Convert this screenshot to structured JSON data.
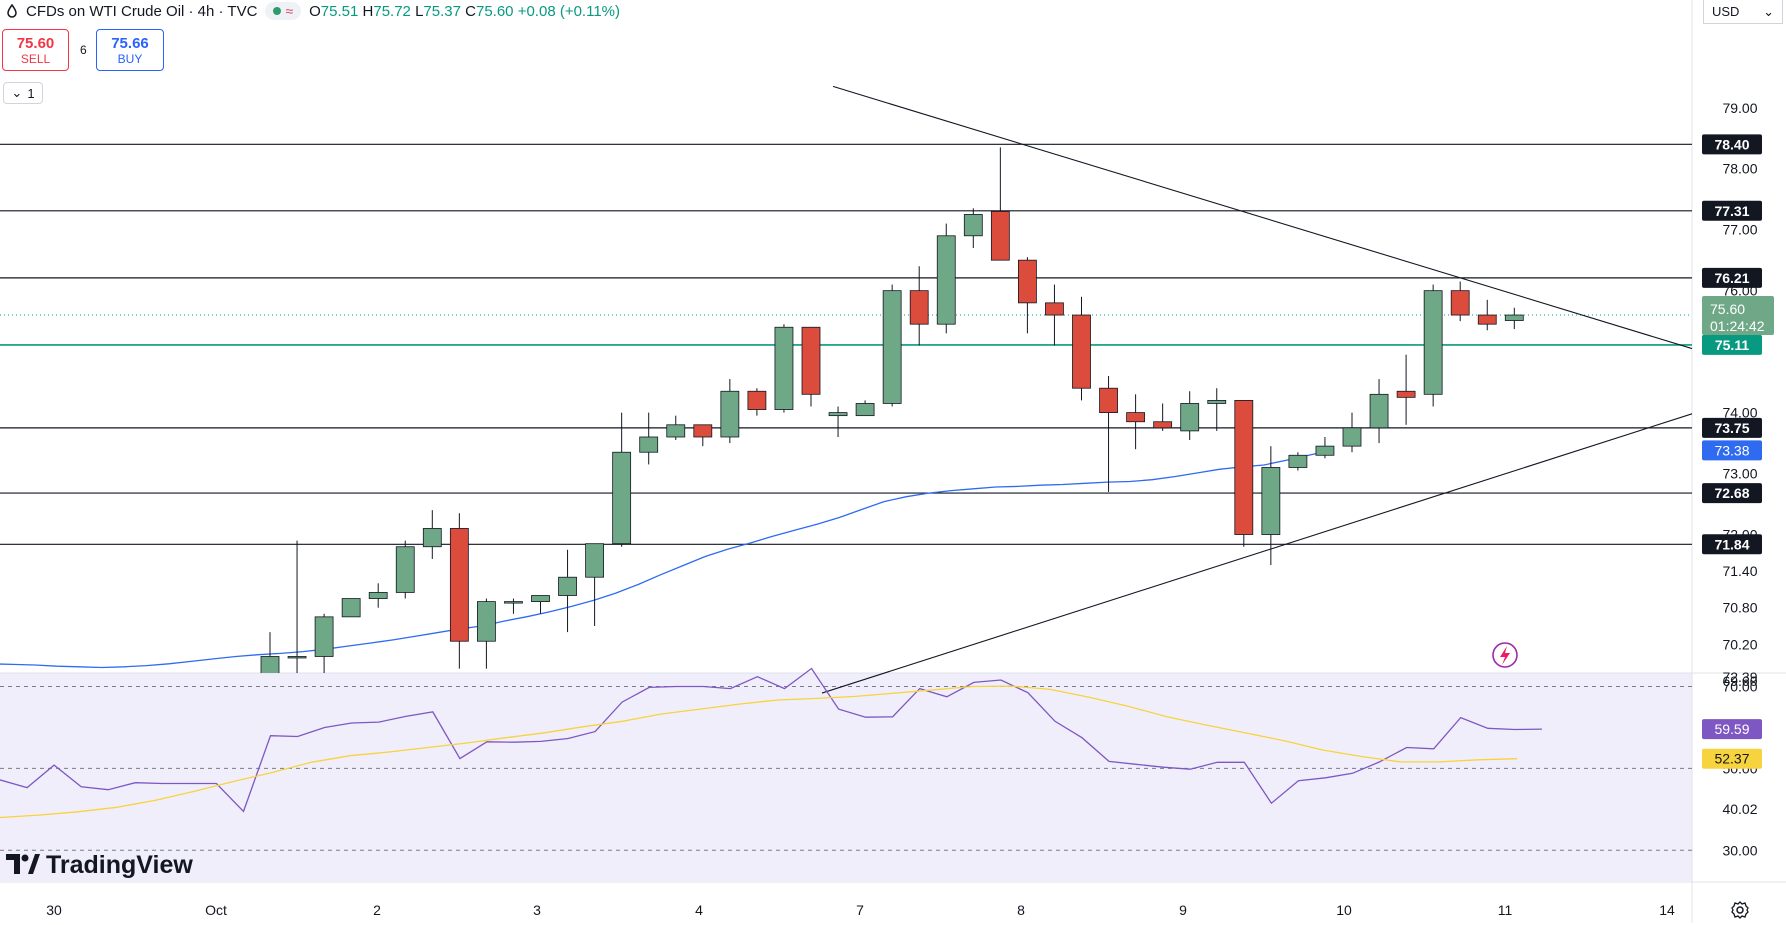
{
  "header": {
    "title": "CFDs on WTI Crude Oil · 4h · TVC",
    "ohlc": {
      "o_label": "O",
      "o": "75.51",
      "h_label": "H",
      "h": "75.72",
      "l_label": "L",
      "l": "75.37",
      "c_label": "C",
      "c": "75.60",
      "change": "+0.08 (+0.11%)"
    }
  },
  "trade": {
    "sell_price": "75.60",
    "sell_label": "SELL",
    "spread": "6",
    "buy_price": "75.66",
    "buy_label": "BUY"
  },
  "collapse_label": "1",
  "currency": "USD",
  "logo_text": "TradingView",
  "countdown": "01:24:42",
  "colors": {
    "up": "#6fa886",
    "down": "#db4c3c",
    "ma": "#2f6bf0",
    "rsi": "#7e57c2",
    "rsi_ma": "#f7d33d",
    "teal": "#089981"
  },
  "chart_data": [
    {
      "type": "candlestick",
      "title": "CFDs on WTI Crude Oil · 4h · TVC",
      "price_axis_ticks": [
        "79.00",
        "78.00",
        "77.00",
        "76.00",
        "74.00",
        "73.00",
        "72.00",
        "71.40",
        "70.80",
        "70.20",
        "69.60"
      ],
      "x_ticks": [
        "30",
        "Oct",
        "2",
        "3",
        "4",
        "7",
        "8",
        "9",
        "10",
        "11",
        "14"
      ],
      "candles": [
        {
          "o": 69.6,
          "h": 70.4,
          "l": 69.6,
          "c": 70.0
        },
        {
          "o": 70.0,
          "h": 71.9,
          "l": 69.6,
          "c": 70.0
        },
        {
          "o": 70.0,
          "h": 70.7,
          "l": 69.7,
          "c": 70.65
        },
        {
          "o": 70.65,
          "h": 70.95,
          "l": 70.65,
          "c": 70.95
        },
        {
          "o": 70.95,
          "h": 71.2,
          "l": 70.8,
          "c": 71.05
        },
        {
          "o": 71.05,
          "h": 71.9,
          "l": 70.95,
          "c": 71.8
        },
        {
          "o": 71.8,
          "h": 72.4,
          "l": 71.6,
          "c": 72.1
        },
        {
          "o": 72.1,
          "h": 72.35,
          "l": 69.8,
          "c": 70.25
        },
        {
          "o": 70.25,
          "h": 70.95,
          "l": 69.8,
          "c": 70.9
        },
        {
          "o": 70.9,
          "h": 70.95,
          "l": 70.7,
          "c": 70.9
        },
        {
          "o": 70.9,
          "h": 71.0,
          "l": 70.7,
          "c": 71.0
        },
        {
          "o": 71.0,
          "h": 71.75,
          "l": 70.4,
          "c": 71.3
        },
        {
          "o": 71.3,
          "h": 71.85,
          "l": 70.5,
          "c": 71.85
        },
        {
          "o": 71.85,
          "h": 74.0,
          "l": 71.8,
          "c": 73.35
        },
        {
          "o": 73.35,
          "h": 74.0,
          "l": 73.15,
          "c": 73.6
        },
        {
          "o": 73.6,
          "h": 73.95,
          "l": 73.55,
          "c": 73.8
        },
        {
          "o": 73.8,
          "h": 73.8,
          "l": 73.45,
          "c": 73.6
        },
        {
          "o": 73.6,
          "h": 74.55,
          "l": 73.5,
          "c": 74.35
        },
        {
          "o": 74.35,
          "h": 74.4,
          "l": 73.95,
          "c": 74.05
        },
        {
          "o": 74.05,
          "h": 75.45,
          "l": 74.0,
          "c": 75.4
        },
        {
          "o": 75.4,
          "h": 75.4,
          "l": 74.1,
          "c": 74.3
        },
        {
          "o": 73.95,
          "h": 74.1,
          "l": 73.6,
          "c": 74.0
        },
        {
          "o": 73.95,
          "h": 74.2,
          "l": 73.95,
          "c": 74.15
        },
        {
          "o": 74.15,
          "h": 76.1,
          "l": 74.1,
          "c": 76.0
        },
        {
          "o": 76.0,
          "h": 76.4,
          "l": 75.1,
          "c": 75.45
        },
        {
          "o": 75.45,
          "h": 77.1,
          "l": 75.3,
          "c": 76.9
        },
        {
          "o": 76.9,
          "h": 77.35,
          "l": 76.7,
          "c": 77.25
        },
        {
          "o": 77.3,
          "h": 78.35,
          "l": 76.5,
          "c": 76.5
        },
        {
          "o": 76.5,
          "h": 76.55,
          "l": 75.3,
          "c": 75.8
        },
        {
          "o": 75.8,
          "h": 76.1,
          "l": 75.1,
          "c": 75.6
        },
        {
          "o": 75.6,
          "h": 75.9,
          "l": 74.2,
          "c": 74.4
        },
        {
          "o": 74.4,
          "h": 74.6,
          "l": 72.7,
          "c": 74.0
        },
        {
          "o": 74.0,
          "h": 74.3,
          "l": 73.4,
          "c": 73.85
        },
        {
          "o": 73.85,
          "h": 74.15,
          "l": 73.7,
          "c": 73.75
        },
        {
          "o": 73.7,
          "h": 74.35,
          "l": 73.55,
          "c": 74.15
        },
        {
          "o": 74.15,
          "h": 74.4,
          "l": 73.7,
          "c": 74.2
        },
        {
          "o": 74.2,
          "h": 74.2,
          "l": 71.8,
          "c": 72.0
        },
        {
          "o": 72.0,
          "h": 73.45,
          "l": 71.5,
          "c": 73.1
        },
        {
          "o": 73.1,
          "h": 73.35,
          "l": 73.05,
          "c": 73.3
        },
        {
          "o": 73.3,
          "h": 73.6,
          "l": 73.25,
          "c": 73.45
        },
        {
          "o": 73.45,
          "h": 74.0,
          "l": 73.35,
          "c": 73.75
        },
        {
          "o": 73.75,
          "h": 74.55,
          "l": 73.5,
          "c": 74.3
        },
        {
          "o": 74.35,
          "h": 74.95,
          "l": 73.8,
          "c": 74.25
        },
        {
          "o": 74.3,
          "h": 76.1,
          "l": 74.1,
          "c": 76.0
        },
        {
          "o": 76.0,
          "h": 76.15,
          "l": 75.5,
          "c": 75.6
        },
        {
          "o": 75.6,
          "h": 75.85,
          "l": 75.35,
          "c": 75.45
        },
        {
          "o": 75.51,
          "h": 75.72,
          "l": 75.37,
          "c": 75.6
        }
      ],
      "ma_series": [
        69.88,
        69.87,
        69.86,
        69.84,
        69.83,
        69.82,
        69.83,
        69.85,
        69.88,
        69.92,
        69.96,
        70.0,
        70.03,
        70.05,
        70.08,
        70.12,
        70.17,
        70.22,
        70.27,
        70.33,
        70.39,
        70.45,
        70.5,
        70.58,
        70.65,
        70.73,
        70.82,
        70.92,
        71.04,
        71.18,
        71.34,
        71.49,
        71.64,
        71.76,
        71.86,
        71.97,
        72.07,
        72.17,
        72.28,
        72.41,
        72.54,
        72.62,
        72.68,
        72.72,
        72.75,
        72.78,
        72.79,
        72.81,
        72.82,
        72.84,
        72.86,
        72.87,
        72.9,
        72.95,
        73.01,
        73.07,
        73.11,
        73.14,
        73.22,
        73.3,
        73.38
      ],
      "horizontal_levels": [
        {
          "value": 78.4,
          "label": "78.40"
        },
        {
          "value": 77.31,
          "label": "77.31"
        },
        {
          "value": 76.21,
          "label": "76.21"
        },
        {
          "value": 75.11,
          "label": "75.11",
          "style": "teal"
        },
        {
          "value": 73.75,
          "label": "73.75"
        },
        {
          "value": 72.68,
          "label": "72.68"
        },
        {
          "value": 71.84,
          "label": "71.84"
        }
      ],
      "ma_value_label": "73.38",
      "last_price": {
        "value": 75.6,
        "label": "75.60",
        "dotted_line": true
      }
    },
    {
      "type": "line",
      "panel": "RSI",
      "ticks": [
        "72.39",
        "70.00",
        "50.00",
        "40.02",
        "30.00"
      ],
      "overbought": 70,
      "oversold": 50,
      "ylim": [
        28.8,
        75
      ],
      "series": [
        {
          "values": [
            47.2,
            45.3,
            50.8,
            45.5,
            44.8,
            46.5,
            46.3,
            46.3,
            46.3,
            39.5,
            58.0,
            57.8,
            60.0,
            61.1,
            61.3,
            62.7,
            63.8,
            52.4,
            56.5,
            56.4,
            56.6,
            57.3,
            59.0,
            66.2,
            69.8,
            70.0,
            70.0,
            69.5,
            72.4,
            69.5,
            74.4,
            64.5,
            62.5,
            62.6,
            69.5,
            67.5,
            71.0,
            71.6,
            68.5,
            61.5,
            57.5,
            51.7,
            51.0,
            50.3,
            49.8,
            51.5,
            51.5,
            41.5,
            47.0,
            47.7,
            48.8,
            51.6,
            55.1,
            54.8,
            62.4,
            59.8,
            59.5,
            59.6
          ]
        },
        {
          "values": [
            38.0,
            38.6,
            39.4,
            40.5,
            42.2,
            44.4,
            46.8,
            49.0,
            51.5,
            53.1,
            54.0,
            55.1,
            56.2,
            57.5,
            58.7,
            60.2,
            61.5,
            63.3,
            64.5,
            65.7,
            66.7,
            67.1,
            67.6,
            68.4,
            69.2,
            70.0,
            70.1,
            69.3,
            67.4,
            65.2,
            62.6,
            60.6,
            58.7,
            56.8,
            54.5,
            52.9,
            51.6,
            51.6,
            52.1,
            52.37
          ]
        }
      ],
      "series_labels": [
        "59.59",
        "52.37"
      ]
    }
  ]
}
